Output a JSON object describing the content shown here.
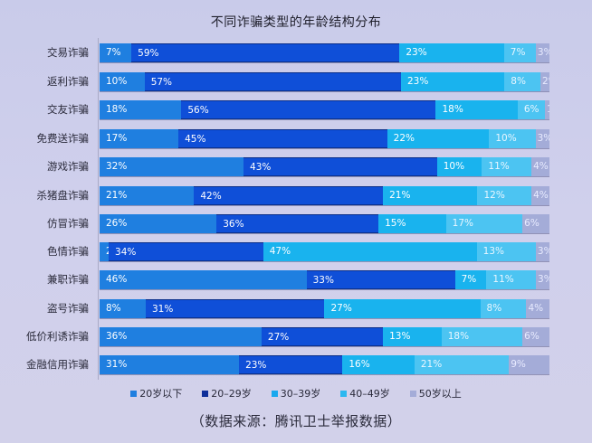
{
  "chart_data": {
    "type": "bar",
    "orientation": "horizontal",
    "stacked": true,
    "percent": true,
    "title": "不同诈骗类型的年龄结构分布",
    "xlabel": "",
    "ylabel": "",
    "xlim": [
      0,
      100
    ],
    "grid": false,
    "legend_position": "bottom",
    "categories": [
      "交易诈骗",
      "返利诈骗",
      "交友诈骗",
      "免费送诈骗",
      "游戏诈骗",
      "杀猪盘诈骗",
      "仿冒诈骗",
      "色情诈骗",
      "兼职诈骗",
      "盗号诈骗",
      "低价利诱诈骗",
      "金融信用诈骗"
    ],
    "series": [
      {
        "name": "20岁以下",
        "color": "#1f7fe0",
        "values": [
          7,
          10,
          18,
          17,
          32,
          21,
          26,
          2,
          46,
          8,
          36,
          31
        ]
      },
      {
        "name": "20-29岁",
        "color": "#0f4fd8",
        "values": [
          59,
          57,
          56,
          45,
          43,
          42,
          36,
          34,
          33,
          31,
          27,
          23
        ]
      },
      {
        "name": "30-39岁",
        "color": "#19b3ee",
        "values": [
          23,
          23,
          18,
          22,
          10,
          21,
          15,
          47,
          7,
          27,
          13,
          16
        ]
      },
      {
        "name": "40-49岁",
        "color": "#4cc4f2",
        "values": [
          7,
          8,
          6,
          10,
          11,
          12,
          17,
          13,
          11,
          8,
          18,
          21
        ]
      },
      {
        "name": "50岁以上",
        "color": "#a4acd8",
        "values": [
          3,
          2,
          1,
          3,
          4,
          4,
          6,
          3,
          3,
          4,
          6,
          9
        ]
      }
    ],
    "source_note": "（数据来源：腾讯卫士举报数据）"
  },
  "header": {
    "title": "不同诈骗类型的年龄结构分布"
  },
  "legend": {
    "items": [
      {
        "label": "20岁以下",
        "color": "#1f7fe0"
      },
      {
        "label": "20–29岁",
        "color": "#0f2f9a"
      },
      {
        "label": "30–39岁",
        "color": "#19a8ee"
      },
      {
        "label": "40–49岁",
        "color": "#2bb8f0"
      },
      {
        "label": "50岁以上",
        "color": "#a4acd8"
      }
    ]
  },
  "footer": {
    "source": "（数据来源：腾讯卫士举报数据）"
  },
  "rows": [
    {
      "label": "交易诈骗",
      "values": [
        "7%",
        "59%",
        "23%",
        "7%",
        "3%"
      ]
    },
    {
      "label": "返利诈骗",
      "values": [
        "10%",
        "57%",
        "23%",
        "8%",
        "2%"
      ]
    },
    {
      "label": "交友诈骗",
      "values": [
        "18%",
        "56%",
        "18%",
        "6%",
        "1%"
      ]
    },
    {
      "label": "免费送诈骗",
      "values": [
        "17%",
        "45%",
        "22%",
        "10%",
        "3%"
      ]
    },
    {
      "label": "游戏诈骗",
      "values": [
        "32%",
        "43%",
        "10%",
        "11%",
        "4%"
      ]
    },
    {
      "label": "杀猪盘诈骗",
      "values": [
        "21%",
        "42%",
        "21%",
        "12%",
        "4%"
      ]
    },
    {
      "label": "仿冒诈骗",
      "values": [
        "26%",
        "36%",
        "15%",
        "17%",
        "6%"
      ]
    },
    {
      "label": "色情诈骗",
      "values": [
        "2%",
        "34%",
        "47%",
        "13%",
        "3%"
      ]
    },
    {
      "label": "兼职诈骗",
      "values": [
        "46%",
        "33%",
        "7%",
        "11%",
        "3%"
      ]
    },
    {
      "label": "盗号诈骗",
      "values": [
        "8%",
        "31%",
        "27%",
        "8%",
        "4%"
      ]
    },
    {
      "label": "低价利诱诈骗",
      "values": [
        "36%",
        "27%",
        "13%",
        "18%",
        "6%"
      ]
    },
    {
      "label": "金融信用诈骗",
      "values": [
        "31%",
        "23%",
        "16%",
        "21%",
        "9%"
      ]
    }
  ]
}
